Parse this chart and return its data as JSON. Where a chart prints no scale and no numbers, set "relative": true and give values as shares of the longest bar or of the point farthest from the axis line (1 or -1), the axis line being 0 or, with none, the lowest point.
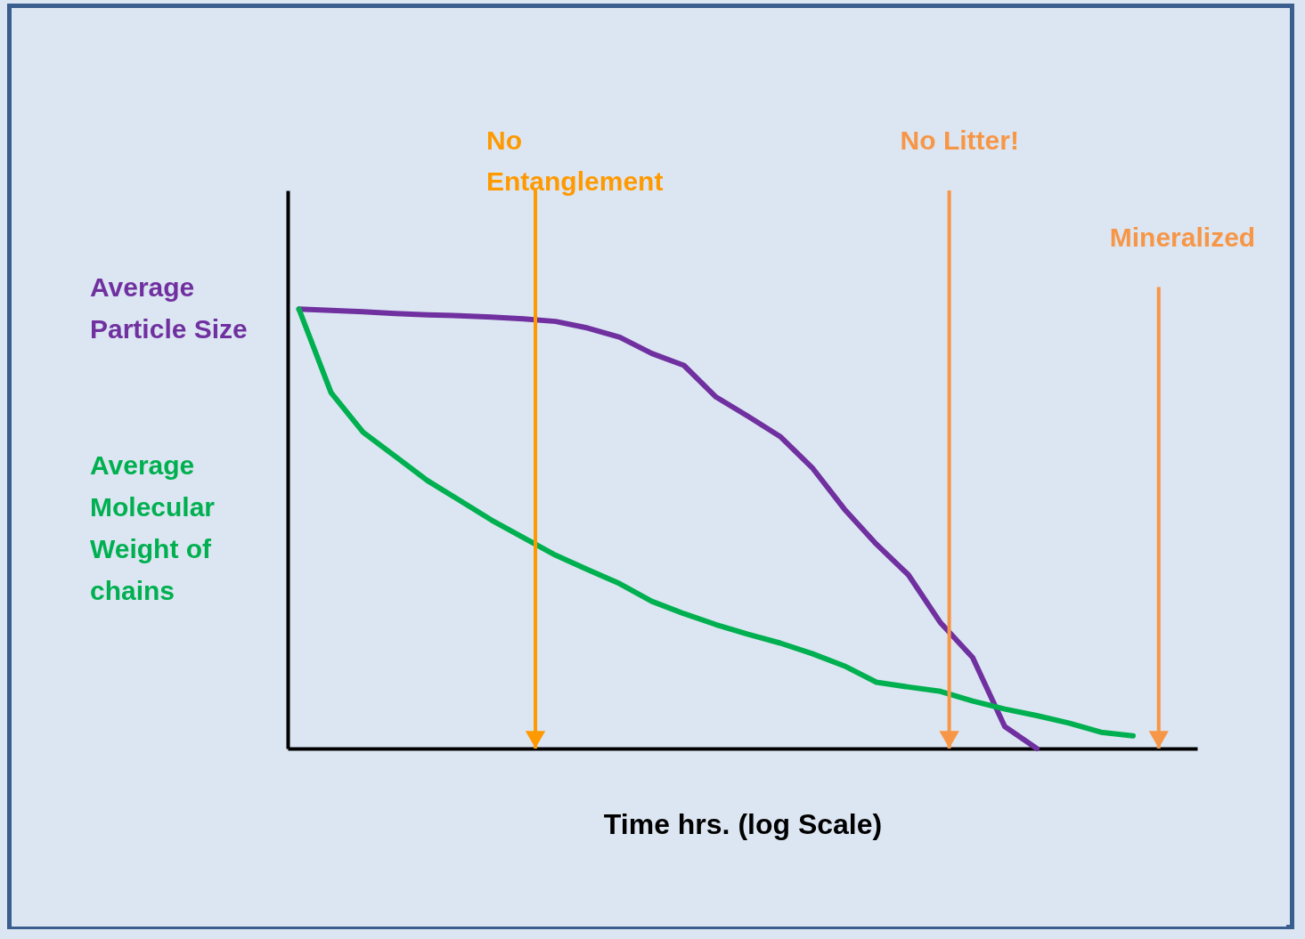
{
  "chart_data": {
    "type": "line",
    "relative": true,
    "xlabel": "Time  hrs. (log Scale)",
    "categories": [
      null,
      null,
      null,
      null,
      null,
      null,
      null,
      null,
      null,
      null,
      null,
      null,
      null,
      null,
      null,
      null,
      null,
      null,
      null,
      null,
      null,
      null,
      null,
      null,
      null,
      null,
      null
    ],
    "series": [
      {
        "name": "Average Particle Size",
        "color": "#7030a0",
        "values": [
          1.0,
          0.997,
          0.994,
          0.99,
          0.987,
          0.985,
          0.982,
          0.978,
          0.972,
          0.957,
          0.936,
          0.899,
          0.872,
          0.8,
          0.756,
          0.71,
          0.639,
          0.545,
          0.465,
          0.395,
          0.286,
          0.207,
          0.05,
          0.0,
          null,
          null,
          null
        ]
      },
      {
        "name": "Average Molecular Weight of chains",
        "color": "#00b050",
        "values": [
          1.0,
          0.81,
          0.72,
          0.665,
          0.61,
          0.565,
          0.52,
          0.48,
          0.44,
          0.407,
          0.375,
          0.335,
          0.307,
          0.282,
          0.26,
          0.24,
          0.216,
          0.188,
          0.151,
          0.14,
          0.13,
          0.108,
          0.09,
          0.075,
          0.058,
          0.037,
          0.029
        ]
      }
    ],
    "annotations": [
      "No Entanglement",
      "No Litter!",
      "Mineralized"
    ]
  }
}
